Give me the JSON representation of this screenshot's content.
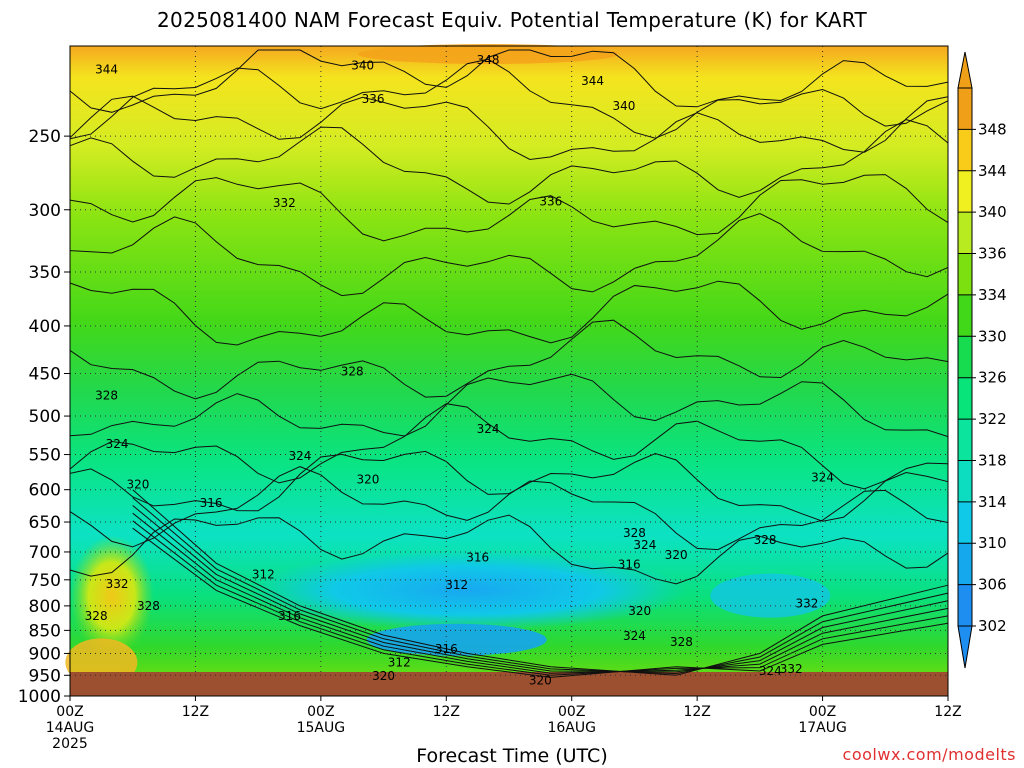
{
  "title": "2025081400 NAM Forecast Equiv. Potential Temperature (K) for KART",
  "credit": "coolwx.com/modelts",
  "chart_data": {
    "type": "heatmap",
    "title": "2025081400 NAM Forecast Equiv. Potential Temperature (K) for KART",
    "xlabel": "Forecast Time (UTC)",
    "ylabel": "",
    "x_ticks": [
      {
        "hour": 0,
        "lines": [
          "00Z",
          "14AUG",
          "2025"
        ]
      },
      {
        "hour": 12,
        "lines": [
          "12Z"
        ]
      },
      {
        "hour": 24,
        "lines": [
          "00Z",
          "15AUG"
        ]
      },
      {
        "hour": 36,
        "lines": [
          "12Z"
        ]
      },
      {
        "hour": 48,
        "lines": [
          "00Z",
          "16AUG"
        ]
      },
      {
        "hour": 60,
        "lines": [
          "12Z"
        ]
      },
      {
        "hour": 72,
        "lines": [
          "00Z",
          "17AUG"
        ]
      },
      {
        "hour": 84,
        "lines": [
          "12Z"
        ]
      }
    ],
    "xlim": [
      0,
      84
    ],
    "y_ticks": [
      250,
      300,
      350,
      400,
      450,
      500,
      550,
      600,
      650,
      700,
      750,
      800,
      850,
      900,
      950,
      1000
    ],
    "ylim": [
      200,
      1000
    ],
    "y_scale": "log",
    "y_reversed": true,
    "grid": true,
    "colorbar": {
      "levels": [
        302,
        306,
        310,
        314,
        318,
        322,
        326,
        330,
        334,
        336,
        340,
        344,
        348
      ],
      "colors": [
        "#1e8ef0",
        "#16a8ec",
        "#10c8e8",
        "#0cdcc0",
        "#0ae49c",
        "#08e47a",
        "#18dc50",
        "#40d818",
        "#7ce010",
        "#b8ec20",
        "#f0f020",
        "#f8cc18",
        "#f0a018"
      ],
      "min_label": 302,
      "max_label": 348
    },
    "ground_color": "#9c5030",
    "contour_labels": [
      {
        "value": "348",
        "hour": 40,
        "p": 207
      },
      {
        "value": "344",
        "hour": 3.5,
        "p": 212
      },
      {
        "value": "340",
        "hour": 28,
        "p": 210
      },
      {
        "value": "344",
        "hour": 50,
        "p": 218
      },
      {
        "value": "336",
        "hour": 29,
        "p": 228
      },
      {
        "value": "340",
        "hour": 53,
        "p": 232
      },
      {
        "value": "332",
        "hour": 20.5,
        "p": 295
      },
      {
        "value": "336",
        "hour": 46,
        "p": 294
      },
      {
        "value": "328",
        "hour": 27,
        "p": 448
      },
      {
        "value": "328",
        "hour": 3.5,
        "p": 475
      },
      {
        "value": "324",
        "hour": 40,
        "p": 516
      },
      {
        "value": "324",
        "hour": 4.5,
        "p": 536
      },
      {
        "value": "324",
        "hour": 22,
        "p": 552
      },
      {
        "value": "320",
        "hour": 28.5,
        "p": 585
      },
      {
        "value": "324",
        "hour": 72,
        "p": 582
      },
      {
        "value": "320",
        "hour": 6.5,
        "p": 592
      },
      {
        "value": "316",
        "hour": 13.5,
        "p": 620
      },
      {
        "value": "328",
        "hour": 54,
        "p": 668
      },
      {
        "value": "324",
        "hour": 55,
        "p": 688
      },
      {
        "value": "328",
        "hour": 66.5,
        "p": 680
      },
      {
        "value": "320",
        "hour": 58,
        "p": 705
      },
      {
        "value": "316",
        "hour": 39,
        "p": 710
      },
      {
        "value": "316",
        "hour": 53.5,
        "p": 722
      },
      {
        "value": "312",
        "hour": 18.5,
        "p": 740
      },
      {
        "value": "312",
        "hour": 37,
        "p": 760
      },
      {
        "value": "332",
        "hour": 4.5,
        "p": 758
      },
      {
        "value": "328",
        "hour": 7.5,
        "p": 800
      },
      {
        "value": "328",
        "hour": 2.5,
        "p": 820
      },
      {
        "value": "320",
        "hour": 54.5,
        "p": 810
      },
      {
        "value": "332",
        "hour": 70.5,
        "p": 795
      },
      {
        "value": "316",
        "hour": 21,
        "p": 820
      },
      {
        "value": "324",
        "hour": 54,
        "p": 862
      },
      {
        "value": "328",
        "hour": 58.5,
        "p": 875
      },
      {
        "value": "316",
        "hour": 36,
        "p": 890
      },
      {
        "value": "312",
        "hour": 31.5,
        "p": 920
      },
      {
        "value": "324",
        "hour": 67,
        "p": 940
      },
      {
        "value": "332",
        "hour": 69,
        "p": 935
      },
      {
        "value": "320",
        "hour": 30,
        "p": 952
      },
      {
        "value": "320",
        "hour": 45,
        "p": 962
      }
    ]
  }
}
